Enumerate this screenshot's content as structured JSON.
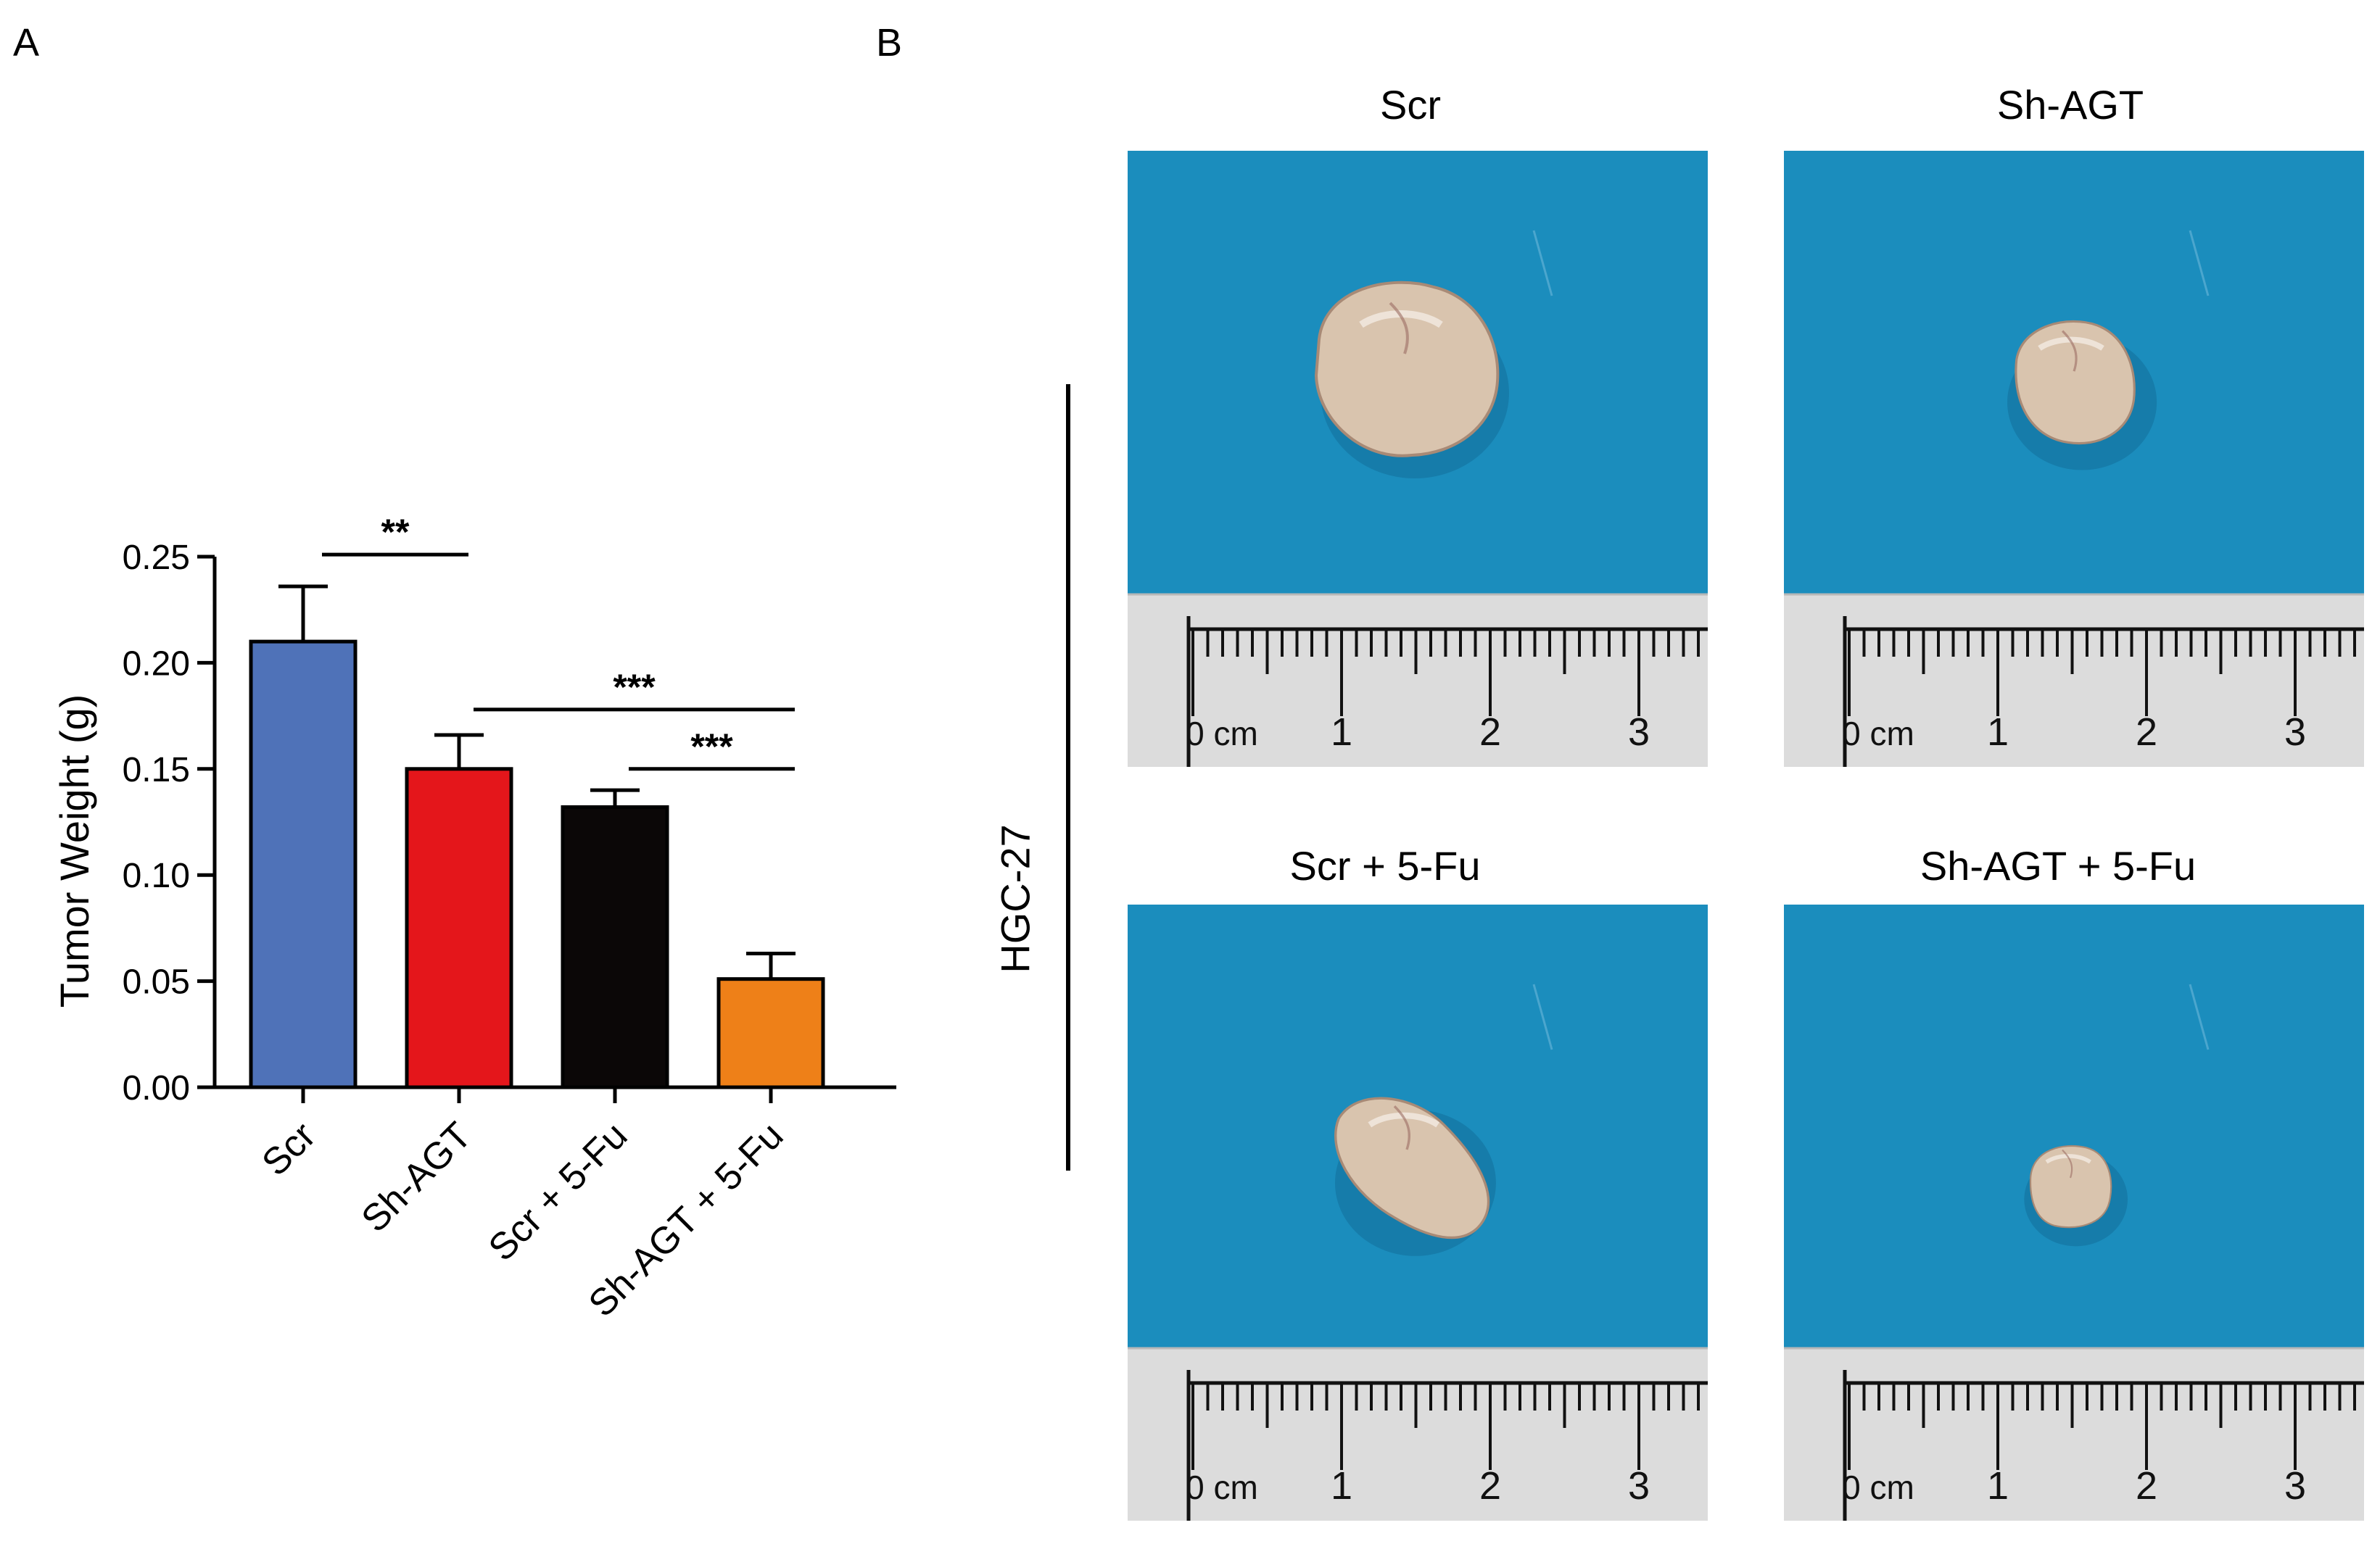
{
  "panels": {
    "a_label": "A",
    "b_label": "B"
  },
  "chart_data": {
    "type": "bar",
    "title": "",
    "xlabel": "",
    "ylabel": "Tumor Weight (g)",
    "ylim": [
      0,
      0.25
    ],
    "yticks": [
      0.0,
      0.05,
      0.1,
      0.15,
      0.2,
      0.25
    ],
    "ytick_labels": [
      "0.00",
      "0.05",
      "0.10",
      "0.15",
      "0.20",
      "0.25"
    ],
    "categories": [
      "Scr",
      "Sh-AGT",
      "Scr + 5-Fu",
      "Sh-AGT + 5-Fu"
    ],
    "values": [
      0.21,
      0.15,
      0.132,
      0.051
    ],
    "errors": [
      0.026,
      0.016,
      0.008,
      0.012
    ],
    "colors": [
      "#4f72b8",
      "#e4161b",
      "#0b0707",
      "#ee8018"
    ],
    "significance": [
      {
        "from": 0,
        "to": 1,
        "label": "**",
        "y": 0.251
      },
      {
        "from": 1,
        "to": 3,
        "label": "***",
        "y": 0.178
      },
      {
        "from": 2,
        "to": 3,
        "label": "***",
        "y": 0.15
      }
    ]
  },
  "photos": {
    "cell_line": "HGC-27",
    "items": [
      {
        "title": "Scr",
        "tumor_rel_size": 0.82
      },
      {
        "title": "Sh-AGT",
        "tumor_rel_size": 0.65
      },
      {
        "title": "Scr + 5-Fu",
        "tumor_rel_size": 0.7
      },
      {
        "title": "Sh-AGT + 5-Fu",
        "tumor_rel_size": 0.45
      }
    ],
    "ruler_labels": [
      "0 cm",
      "1",
      "2",
      "3"
    ],
    "colors": {
      "background": "#1b8dbd",
      "paper": "#dcdcdc",
      "tumor": "#d9c4ae"
    }
  }
}
